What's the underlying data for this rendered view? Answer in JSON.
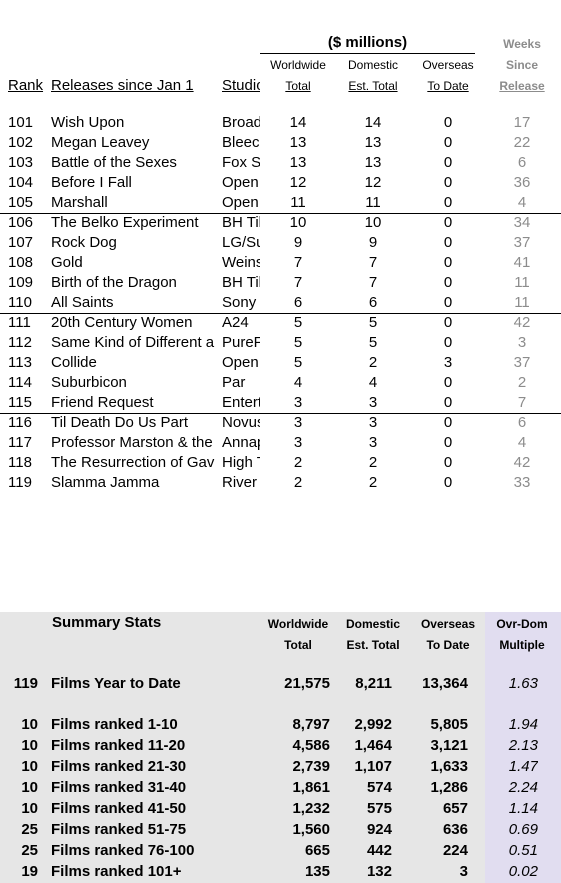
{
  "header": {
    "units": "($ millions)",
    "columns": [
      [
        "Rank"
      ],
      [
        "Releases since Jan 1"
      ],
      [
        "Studio"
      ],
      [
        "Worldwide",
        "Total"
      ],
      [
        "Domestic",
        "Est. Total"
      ],
      [
        "Overseas",
        "To Date"
      ],
      [
        "Weeks",
        "Since",
        "Release"
      ]
    ]
  },
  "table": {
    "rows": [
      [
        101,
        "Wish Upon",
        "Broad",
        14,
        14,
        0,
        17
      ],
      [
        102,
        "Megan Leavey",
        "Bleec",
        13,
        13,
        0,
        22
      ],
      [
        103,
        "Battle of the Sexes",
        "Fox S",
        13,
        13,
        0,
        6
      ],
      [
        104,
        "Before I Fall",
        "Open",
        12,
        12,
        0,
        36
      ],
      [
        105,
        "Marshall",
        "Open",
        11,
        11,
        0,
        4
      ],
      [
        106,
        "The Belko Experiment",
        "BH Til",
        10,
        10,
        0,
        34
      ],
      [
        107,
        "Rock Dog",
        "LG/Su",
        9,
        9,
        0,
        37
      ],
      [
        108,
        "Gold",
        "Weins",
        7,
        7,
        0,
        41
      ],
      [
        109,
        "Birth of the Dragon",
        "BH Til",
        7,
        7,
        0,
        11
      ],
      [
        110,
        "All Saints",
        "Sony",
        6,
        6,
        0,
        11
      ],
      [
        111,
        "20th Century Women",
        "A24",
        5,
        5,
        0,
        42
      ],
      [
        112,
        "Same Kind of Different a",
        "PureF",
        5,
        5,
        0,
        3
      ],
      [
        113,
        "Collide",
        "Open",
        5,
        2,
        3,
        37
      ],
      [
        114,
        "Suburbicon",
        "Par",
        4,
        4,
        0,
        2
      ],
      [
        115,
        "Friend Request",
        "Entert",
        3,
        3,
        0,
        7
      ],
      [
        116,
        "Til Death Do Us Part",
        "Novus",
        3,
        3,
        0,
        6
      ],
      [
        117,
        "Professor Marston & the",
        "Annap",
        3,
        3,
        0,
        4
      ],
      [
        118,
        "The Resurrection of Gav",
        "High T",
        2,
        2,
        0,
        42
      ],
      [
        119,
        "Slamma Jamma",
        "River",
        2,
        2,
        0,
        33
      ]
    ]
  },
  "summary": {
    "title": "Summary Stats",
    "columns": [
      [
        "Worldwide",
        "Total"
      ],
      [
        "Domestic",
        "Est. Total"
      ],
      [
        "Overseas",
        "To Date"
      ],
      [
        "Ovr-Dom",
        "Multiple"
      ]
    ],
    "rows": [
      [
        119,
        "Films Year to Date",
        "21,575",
        "8,211",
        "13,364",
        1.63
      ],
      [
        10,
        "Films ranked 1-10",
        "8,797",
        "2,992",
        "5,805",
        1.94
      ],
      [
        10,
        "Films ranked 11-20",
        "4,586",
        "1,464",
        "3,121",
        2.13
      ],
      [
        10,
        "Films ranked 21-30",
        "2,739",
        "1,107",
        "1,633",
        1.47
      ],
      [
        10,
        "Films ranked 31-40",
        "1,861",
        574,
        "1,286",
        2.24
      ],
      [
        10,
        "Films ranked 41-50",
        "1,232",
        575,
        657,
        1.14
      ],
      [
        25,
        "Films ranked 51-75",
        "1,560",
        924,
        636,
        0.69
      ],
      [
        25,
        "Films ranked 76-100",
        665,
        442,
        224,
        0.51
      ],
      [
        19,
        "Films ranked 101+",
        135,
        132,
        3,
        0.02
      ]
    ]
  }
}
